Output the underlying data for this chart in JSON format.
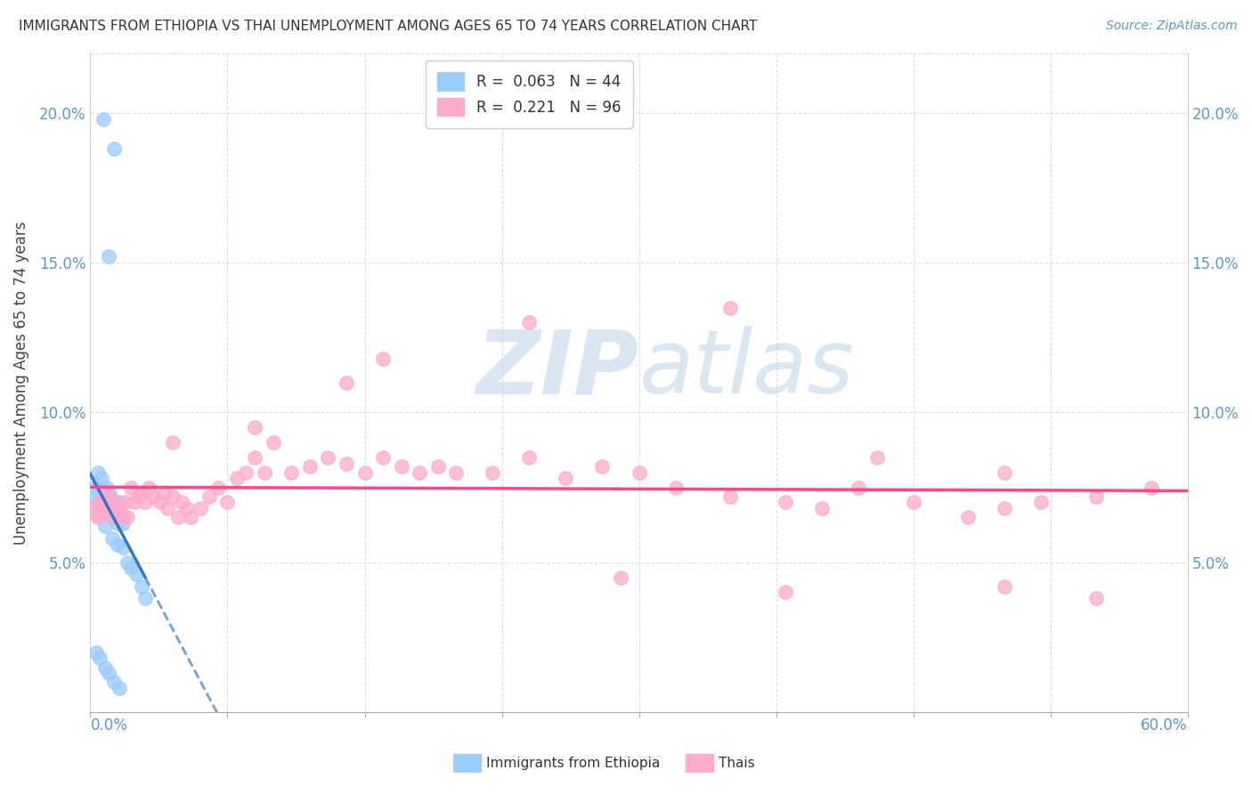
{
  "title": "IMMIGRANTS FROM ETHIOPIA VS THAI UNEMPLOYMENT AMONG AGES 65 TO 74 YEARS CORRELATION CHART",
  "source": "Source: ZipAtlas.com",
  "ylabel": "Unemployment Among Ages 65 to 74 years",
  "xlim": [
    0.0,
    0.6
  ],
  "ylim": [
    0.0,
    0.22
  ],
  "yticks": [
    0.05,
    0.1,
    0.15,
    0.2
  ],
  "ytick_labels": [
    "5.0%",
    "10.0%",
    "15.0%",
    "20.0%"
  ],
  "xticks": [
    0.0,
    0.075,
    0.15,
    0.225,
    0.3,
    0.375,
    0.45,
    0.525,
    0.6
  ],
  "ethiopia_color": "#99ccff",
  "thais_color": "#ffaacc",
  "ethiopia_line_color": "#3377cc",
  "thais_line_color": "#ff4488",
  "watermark_color": "#c8dff0",
  "background_color": "#ffffff",
  "ethiopia_x": [
    0.007,
    0.013,
    0.01,
    0.002,
    0.003,
    0.004,
    0.005,
    0.005,
    0.006,
    0.006,
    0.007,
    0.007,
    0.008,
    0.008,
    0.009,
    0.009,
    0.01,
    0.01,
    0.011,
    0.012,
    0.012,
    0.013,
    0.014,
    0.015,
    0.015,
    0.016,
    0.017,
    0.018,
    0.008,
    0.012,
    0.015,
    0.018,
    0.02,
    0.022,
    0.025,
    0.028,
    0.03,
    0.003,
    0.005,
    0.008,
    0.01,
    0.013,
    0.016
  ],
  "ethiopia_y": [
    0.198,
    0.188,
    0.152,
    0.075,
    0.072,
    0.08,
    0.075,
    0.07,
    0.078,
    0.072,
    0.068,
    0.073,
    0.07,
    0.067,
    0.075,
    0.071,
    0.073,
    0.068,
    0.072,
    0.065,
    0.07,
    0.068,
    0.068,
    0.066,
    0.063,
    0.07,
    0.067,
    0.063,
    0.062,
    0.058,
    0.056,
    0.055,
    0.05,
    0.048,
    0.046,
    0.042,
    0.038,
    0.02,
    0.018,
    0.015,
    0.013,
    0.01,
    0.008
  ],
  "thais_x": [
    0.002,
    0.003,
    0.004,
    0.005,
    0.006,
    0.007,
    0.008,
    0.009,
    0.01,
    0.011,
    0.012,
    0.013,
    0.014,
    0.015,
    0.016,
    0.017,
    0.018,
    0.019,
    0.02,
    0.022,
    0.024,
    0.026,
    0.028,
    0.03,
    0.032,
    0.035,
    0.038,
    0.04,
    0.042,
    0.045,
    0.048,
    0.05,
    0.053,
    0.055,
    0.06,
    0.065,
    0.07,
    0.075,
    0.08,
    0.085,
    0.09,
    0.095,
    0.1,
    0.11,
    0.12,
    0.13,
    0.14,
    0.15,
    0.16,
    0.17,
    0.18,
    0.19,
    0.2,
    0.22,
    0.24,
    0.26,
    0.28,
    0.3,
    0.32,
    0.35,
    0.38,
    0.4,
    0.42,
    0.45,
    0.48,
    0.5,
    0.52,
    0.55,
    0.58,
    0.24,
    0.35,
    0.14,
    0.09,
    0.16,
    0.045,
    0.43,
    0.5,
    0.29,
    0.38,
    0.5,
    0.55
  ],
  "thais_y": [
    0.068,
    0.066,
    0.065,
    0.07,
    0.068,
    0.072,
    0.07,
    0.068,
    0.073,
    0.068,
    0.065,
    0.07,
    0.067,
    0.065,
    0.068,
    0.066,
    0.065,
    0.07,
    0.065,
    0.075,
    0.07,
    0.072,
    0.073,
    0.07,
    0.075,
    0.072,
    0.07,
    0.073,
    0.068,
    0.072,
    0.065,
    0.07,
    0.068,
    0.065,
    0.068,
    0.072,
    0.075,
    0.07,
    0.078,
    0.08,
    0.085,
    0.08,
    0.09,
    0.08,
    0.082,
    0.085,
    0.083,
    0.08,
    0.085,
    0.082,
    0.08,
    0.082,
    0.08,
    0.08,
    0.085,
    0.078,
    0.082,
    0.08,
    0.075,
    0.072,
    0.07,
    0.068,
    0.075,
    0.07,
    0.065,
    0.068,
    0.07,
    0.072,
    0.075,
    0.13,
    0.135,
    0.11,
    0.095,
    0.118,
    0.09,
    0.085,
    0.08,
    0.045,
    0.04,
    0.042,
    0.038
  ]
}
